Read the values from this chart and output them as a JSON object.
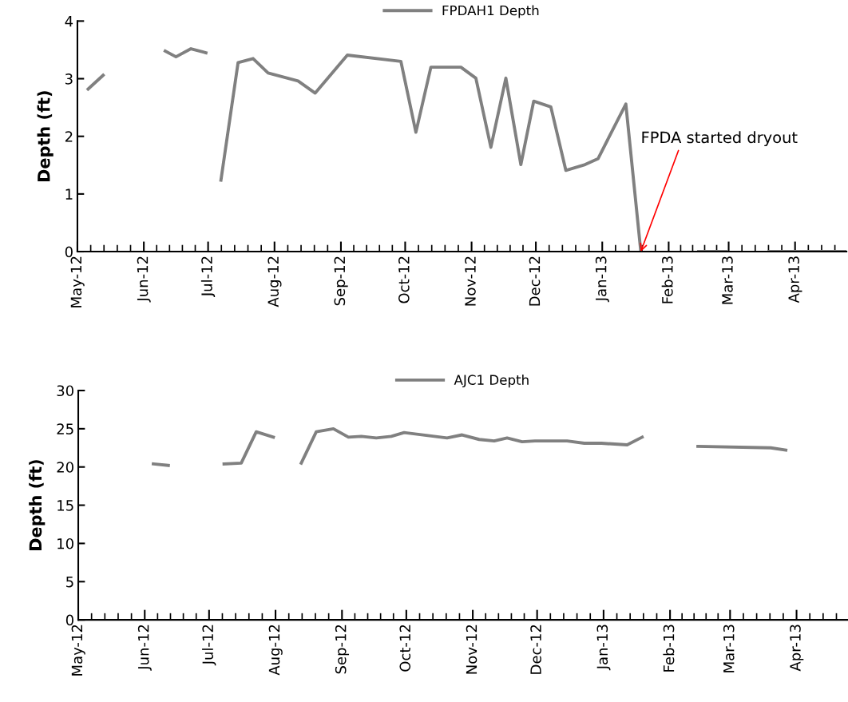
{
  "chart_data": [
    {
      "type": "line",
      "ylabel": "Depth (ft)",
      "legend": "top",
      "x": [
        "2012-05-06",
        "2012-05-13",
        "2012-05-27",
        "2012-06-11",
        "2012-06-16",
        "2012-06-23",
        "2012-06-30",
        "2012-07-03",
        "2012-07-07",
        "2012-07-15",
        "2012-07-22",
        "2012-07-29",
        "2012-08-12",
        "2012-08-20",
        "2012-09-04",
        "2012-09-29",
        "2012-10-06",
        "2012-10-13",
        "2012-10-27",
        "2012-11-03",
        "2012-11-10",
        "2012-11-17",
        "2012-11-24",
        "2012-11-30",
        "2012-12-08",
        "2012-12-15",
        "2012-12-24",
        "2012-12-30",
        "2013-01-12",
        "2013-01-19",
        "2013-02-01",
        "2013-02-15",
        "2013-02-28",
        "2013-03-08",
        "2013-03-20",
        "2013-04-25"
      ],
      "series": [
        {
          "name": "FPDAH1 Depth",
          "color": "#808080",
          "values": [
            2.82,
            3.06,
            null,
            3.48,
            3.38,
            3.52,
            3.45,
            null,
            1.24,
            3.28,
            3.35,
            3.1,
            2.96,
            2.75,
            3.41,
            3.3,
            2.07,
            3.2,
            3.2,
            3.01,
            1.81,
            3.01,
            1.51,
            2.61,
            2.51,
            1.41,
            1.51,
            1.61,
            2.56,
            0,
            null,
            0,
            0,
            null,
            0,
            0
          ]
        }
      ],
      "xlim": [
        "2012-05-01",
        "2013-04-25"
      ],
      "xticks": [
        {
          "value": "2012-05-01",
          "label": "May-12"
        },
        {
          "value": "2012-06-01",
          "label": "Jun-12"
        },
        {
          "value": "2012-07-01",
          "label": "Jul-12"
        },
        {
          "value": "2012-08-01",
          "label": "Aug-12"
        },
        {
          "value": "2012-09-01",
          "label": "Sep-12"
        },
        {
          "value": "2012-10-01",
          "label": "Oct-12"
        },
        {
          "value": "2012-11-01",
          "label": "Nov-12"
        },
        {
          "value": "2012-12-01",
          "label": "Dec-12"
        },
        {
          "value": "2013-01-01",
          "label": "Jan-13"
        },
        {
          "value": "2013-02-01",
          "label": "Feb-13"
        },
        {
          "value": "2013-03-01",
          "label": "Mar-13"
        },
        {
          "value": "2013-04-01",
          "label": "Apr-13"
        }
      ],
      "ylim": [
        0,
        4
      ],
      "yticks": [
        0,
        1,
        2,
        3,
        4
      ],
      "annotations": [
        {
          "text": "FPDA started dryout",
          "x": "2013-01-19",
          "y": 0
        }
      ]
    },
    {
      "type": "line",
      "ylabel": "Depth (ft)",
      "legend": "top",
      "x": [
        "2012-06-05",
        "2012-06-12",
        "2012-06-25",
        "2012-07-08",
        "2012-07-16",
        "2012-07-23",
        "2012-07-31",
        "2012-08-06",
        "2012-08-13",
        "2012-08-20",
        "2012-08-28",
        "2012-09-04",
        "2012-09-10",
        "2012-09-17",
        "2012-09-24",
        "2012-09-30",
        "2012-10-20",
        "2012-10-27",
        "2012-11-04",
        "2012-11-11",
        "2012-11-17",
        "2012-11-24",
        "2012-11-30",
        "2012-12-08",
        "2012-12-15",
        "2012-12-23",
        "2012-12-31",
        "2013-01-12",
        "2013-01-19",
        "2013-02-01",
        "2013-02-14",
        "2013-03-20",
        "2013-03-27"
      ],
      "series": [
        {
          "name": "AJC1 Depth",
          "color": "#808080",
          "values": [
            20.4,
            20.2,
            null,
            20.4,
            20.5,
            24.6,
            23.9,
            null,
            20.5,
            24.6,
            25.0,
            23.9,
            24.0,
            23.8,
            24.0,
            24.5,
            23.8,
            24.2,
            23.6,
            23.4,
            23.8,
            23.3,
            23.4,
            23.4,
            23.4,
            23.1,
            23.1,
            22.9,
            23.9,
            null,
            22.7,
            22.5,
            22.2
          ]
        }
      ],
      "xlim": [
        "2012-05-01",
        "2013-04-25"
      ],
      "xticks": [
        {
          "value": "2012-05-01",
          "label": "May-12"
        },
        {
          "value": "2012-06-01",
          "label": "Jun-12"
        },
        {
          "value": "2012-07-01",
          "label": "Jul-12"
        },
        {
          "value": "2012-08-01",
          "label": "Aug-12"
        },
        {
          "value": "2012-09-01",
          "label": "Sep-12"
        },
        {
          "value": "2012-10-01",
          "label": "Oct-12"
        },
        {
          "value": "2012-11-01",
          "label": "Nov-12"
        },
        {
          "value": "2012-12-01",
          "label": "Dec-12"
        },
        {
          "value": "2013-01-01",
          "label": "Jan-13"
        },
        {
          "value": "2013-02-01",
          "label": "Feb-13"
        },
        {
          "value": "2013-03-01",
          "label": "Mar-13"
        },
        {
          "value": "2013-04-01",
          "label": "Apr-13"
        }
      ],
      "ylim": [
        0,
        30
      ],
      "yticks": [
        0,
        5,
        10,
        15,
        20,
        25,
        30
      ]
    }
  ]
}
